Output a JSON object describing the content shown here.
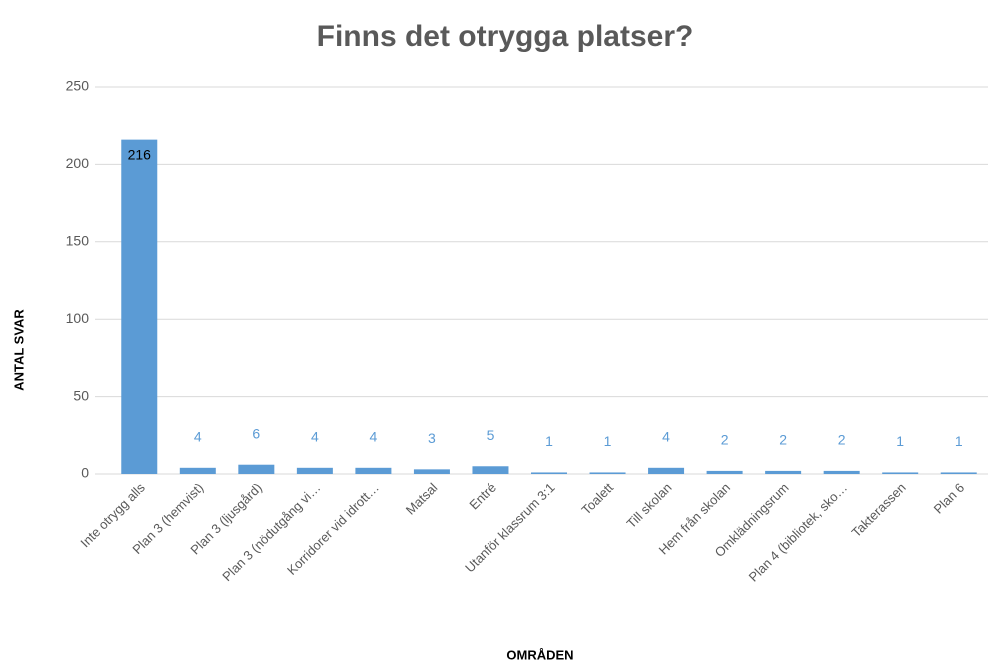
{
  "chart_data": {
    "type": "bar",
    "title": "Finns det otrygga platser?",
    "x_label": "OMRÅDEN",
    "y_label": "ANTAL SVAR",
    "categories": [
      "Inte otrygg alls",
      "Plan 3 (hemvist)",
      "Plan 3 (ljusgård)",
      "Plan 3 (nödutgång vi…",
      "Korridorer vid idrott…",
      "Matsal",
      "Entré",
      "Utanför klassrum 3:1",
      "Toalett",
      "Till skolan",
      "Hem från skolan",
      "Omklädningsrum",
      "Plan 4 (bibliotek, sko…",
      "Takterassen",
      "Plan 6"
    ],
    "values": [
      216,
      4,
      6,
      4,
      4,
      3,
      5,
      1,
      1,
      4,
      2,
      2,
      2,
      1,
      1
    ],
    "color": "#5b9bd5",
    "ylim": [
      0,
      250
    ],
    "yticks": [
      0,
      50,
      100,
      150,
      200,
      250
    ],
    "grid": true
  }
}
